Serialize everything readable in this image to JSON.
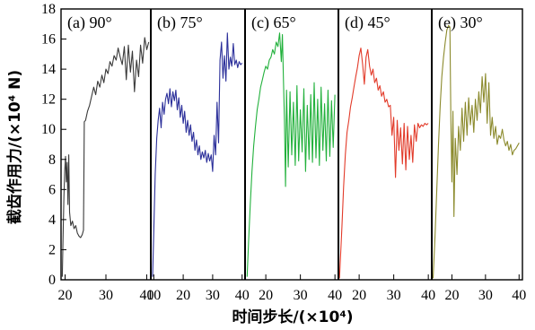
{
  "chart_data": {
    "type": "line",
    "ylabel": "截齿作用力/(×10⁴ N)",
    "xlabel": "时间步长/(×10⁴)",
    "ylim": [
      0,
      18
    ],
    "yticks": [
      "0",
      "2",
      "4",
      "6",
      "8",
      "10",
      "12",
      "14",
      "16",
      "18"
    ],
    "grid": false,
    "panels": [
      {
        "label": "(a) 90°",
        "color": "#3a3a3a",
        "xlim": [
          19,
          41
        ],
        "xticks": [
          "20",
          "30",
          "40"
        ],
        "points": [
          [
            19.3,
            0.2
          ],
          [
            19.5,
            3.0
          ],
          [
            19.7,
            5.5
          ],
          [
            19.9,
            7.2
          ],
          [
            20.1,
            8.2
          ],
          [
            20.3,
            6.5
          ],
          [
            20.5,
            7.8
          ],
          [
            20.7,
            5.0
          ],
          [
            20.9,
            8.3
          ],
          [
            21.1,
            4.5
          ],
          [
            21.4,
            3.6
          ],
          [
            21.8,
            3.9
          ],
          [
            22.2,
            3.4
          ],
          [
            22.6,
            3.6
          ],
          [
            23.0,
            3.1
          ],
          [
            23.4,
            2.9
          ],
          [
            23.8,
            2.8
          ],
          [
            24.2,
            3.0
          ],
          [
            24.5,
            3.3
          ],
          [
            24.7,
            10.5
          ],
          [
            25.0,
            10.6
          ],
          [
            25.5,
            11.2
          ],
          [
            26.0,
            11.6
          ],
          [
            26.5,
            12.2
          ],
          [
            27.0,
            12.8
          ],
          [
            27.5,
            12.3
          ],
          [
            28.0,
            13.2
          ],
          [
            28.5,
            12.8
          ],
          [
            29.0,
            13.6
          ],
          [
            29.5,
            13.1
          ],
          [
            30.0,
            14.0
          ],
          [
            30.5,
            13.7
          ],
          [
            31.0,
            14.5
          ],
          [
            31.5,
            14.2
          ],
          [
            32.0,
            14.9
          ],
          [
            32.5,
            14.6
          ],
          [
            33.0,
            15.4
          ],
          [
            33.5,
            14.8
          ],
          [
            34.0,
            14.3
          ],
          [
            34.5,
            15.5
          ],
          [
            35.0,
            13.3
          ],
          [
            35.5,
            15.6
          ],
          [
            36.0,
            13.8
          ],
          [
            36.5,
            15.2
          ],
          [
            37.0,
            12.5
          ],
          [
            37.5,
            14.6
          ],
          [
            38.0,
            13.5
          ],
          [
            38.5,
            15.6
          ],
          [
            39.0,
            14.4
          ],
          [
            39.5,
            16.1
          ],
          [
            40.0,
            15.3
          ],
          [
            40.5,
            15.8
          ]
        ]
      },
      {
        "label": "(b) 75°",
        "color": "#2b2f9a",
        "xlim": [
          9,
          41
        ],
        "xticks": [
          "10",
          "20",
          "30",
          "40"
        ],
        "points": [
          [
            9.6,
            0.2
          ],
          [
            10.0,
            3.2
          ],
          [
            10.5,
            7.0
          ],
          [
            11.0,
            9.4
          ],
          [
            11.5,
            10.6
          ],
          [
            12.0,
            11.4
          ],
          [
            12.5,
            10.1
          ],
          [
            13.0,
            11.8
          ],
          [
            13.5,
            11.0
          ],
          [
            14.0,
            12.0
          ],
          [
            14.5,
            12.4
          ],
          [
            15.0,
            11.7
          ],
          [
            15.5,
            12.7
          ],
          [
            16.0,
            11.5
          ],
          [
            16.5,
            12.5
          ],
          [
            17.0,
            11.9
          ],
          [
            17.5,
            12.6
          ],
          [
            18.0,
            11.3
          ],
          [
            18.5,
            12.1
          ],
          [
            19.0,
            10.8
          ],
          [
            19.5,
            11.6
          ],
          [
            20.0,
            10.4
          ],
          [
            20.5,
            11.2
          ],
          [
            21.0,
            9.8
          ],
          [
            21.5,
            10.6
          ],
          [
            22.0,
            9.6
          ],
          [
            22.5,
            10.3
          ],
          [
            23.0,
            9.2
          ],
          [
            23.5,
            9.8
          ],
          [
            24.0,
            8.6
          ],
          [
            24.5,
            9.3
          ],
          [
            25.0,
            8.3
          ],
          [
            25.5,
            8.9
          ],
          [
            26.0,
            8.0
          ],
          [
            26.5,
            8.5
          ],
          [
            27.0,
            8.1
          ],
          [
            27.5,
            8.6
          ],
          [
            28.0,
            7.8
          ],
          [
            28.5,
            8.4
          ],
          [
            29.0,
            7.9
          ],
          [
            29.5,
            8.3
          ],
          [
            30.0,
            7.2
          ],
          [
            30.5,
            9.6
          ],
          [
            31.0,
            8.3
          ],
          [
            31.5,
            11.8
          ],
          [
            32.0,
            9.1
          ],
          [
            32.5,
            14.6
          ],
          [
            33.0,
            15.8
          ],
          [
            33.5,
            13.4
          ],
          [
            34.0,
            14.9
          ],
          [
            34.5,
            13.2
          ],
          [
            35.0,
            16.4
          ],
          [
            35.5,
            14.0
          ],
          [
            36.0,
            14.8
          ],
          [
            36.5,
            14.2
          ],
          [
            37.0,
            15.7
          ],
          [
            37.5,
            14.3
          ],
          [
            38.0,
            14.6
          ],
          [
            38.5,
            14.1
          ],
          [
            39.0,
            14.5
          ],
          [
            39.5,
            14.3
          ],
          [
            40.0,
            14.4
          ]
        ]
      },
      {
        "label": "(c) 65°",
        "color": "#22b13c",
        "xlim": [
          14,
          41
        ],
        "xticks": [
          "20",
          "30",
          "40"
        ],
        "points": [
          [
            14.6,
            0.2
          ],
          [
            15.0,
            2.5
          ],
          [
            15.5,
            5.0
          ],
          [
            16.0,
            7.2
          ],
          [
            16.5,
            8.9
          ],
          [
            17.0,
            10.2
          ],
          [
            17.5,
            11.3
          ],
          [
            18.0,
            12.0
          ],
          [
            18.5,
            12.8
          ],
          [
            19.0,
            13.3
          ],
          [
            19.5,
            13.8
          ],
          [
            20.0,
            14.2
          ],
          [
            20.5,
            14.0
          ],
          [
            21.0,
            14.6
          ],
          [
            21.5,
            14.8
          ],
          [
            22.0,
            15.3
          ],
          [
            22.5,
            15.0
          ],
          [
            23.0,
            15.8
          ],
          [
            23.5,
            15.5
          ],
          [
            24.0,
            16.4
          ],
          [
            24.5,
            14.5
          ],
          [
            24.8,
            16.3
          ],
          [
            25.1,
            13.2
          ],
          [
            25.4,
            10.6
          ],
          [
            25.7,
            6.2
          ],
          [
            26.0,
            12.6
          ],
          [
            26.5,
            7.5
          ],
          [
            27.0,
            12.5
          ],
          [
            27.5,
            8.3
          ],
          [
            28.0,
            11.8
          ],
          [
            28.5,
            7.6
          ],
          [
            29.0,
            12.9
          ],
          [
            29.5,
            7.9
          ],
          [
            30.0,
            11.3
          ],
          [
            30.5,
            8.5
          ],
          [
            31.0,
            12.7
          ],
          [
            31.5,
            7.2
          ],
          [
            32.0,
            11.6
          ],
          [
            32.5,
            8.0
          ],
          [
            33.0,
            12.3
          ],
          [
            33.5,
            7.8
          ],
          [
            34.0,
            13.1
          ],
          [
            34.5,
            8.1
          ],
          [
            35.0,
            12.0
          ],
          [
            35.5,
            7.6
          ],
          [
            36.0,
            12.8
          ],
          [
            36.5,
            8.6
          ],
          [
            37.0,
            11.7
          ],
          [
            37.5,
            7.9
          ],
          [
            38.0,
            12.6
          ],
          [
            38.5,
            8.2
          ],
          [
            39.0,
            11.9
          ],
          [
            39.5,
            8.8
          ],
          [
            40.0,
            12.3
          ]
        ]
      },
      {
        "label": "(d) 45°",
        "color": "#e23b2a",
        "xlim": [
          14,
          41
        ],
        "xticks": [
          "20",
          "30",
          "40"
        ],
        "points": [
          [
            14.3,
            0.1
          ],
          [
            15.0,
            3.5
          ],
          [
            15.5,
            6.2
          ],
          [
            16.0,
            8.3
          ],
          [
            16.5,
            9.8
          ],
          [
            17.0,
            10.6
          ],
          [
            17.5,
            11.5
          ],
          [
            18.0,
            12.1
          ],
          [
            18.5,
            12.8
          ],
          [
            19.0,
            13.5
          ],
          [
            19.5,
            14.1
          ],
          [
            20.0,
            14.9
          ],
          [
            20.5,
            15.4
          ],
          [
            21.0,
            14.3
          ],
          [
            21.5,
            13.0
          ],
          [
            22.0,
            14.8
          ],
          [
            22.5,
            15.3
          ],
          [
            23.0,
            14.2
          ],
          [
            23.5,
            13.6
          ],
          [
            24.0,
            14.0
          ],
          [
            24.5,
            13.1
          ],
          [
            25.0,
            13.4
          ],
          [
            25.5,
            12.6
          ],
          [
            26.0,
            12.9
          ],
          [
            26.5,
            12.2
          ],
          [
            27.0,
            12.5
          ],
          [
            27.5,
            11.8
          ],
          [
            28.0,
            12.0
          ],
          [
            28.5,
            11.5
          ],
          [
            29.0,
            11.6
          ],
          [
            29.5,
            9.6
          ],
          [
            30.0,
            10.8
          ],
          [
            30.5,
            6.8
          ],
          [
            31.0,
            10.6
          ],
          [
            31.5,
            8.6
          ],
          [
            32.0,
            10.1
          ],
          [
            32.5,
            7.7
          ],
          [
            33.0,
            10.4
          ],
          [
            33.5,
            7.3
          ],
          [
            34.0,
            10.2
          ],
          [
            34.5,
            8.0
          ],
          [
            35.0,
            9.6
          ],
          [
            35.5,
            7.8
          ],
          [
            36.0,
            10.3
          ],
          [
            36.5,
            9.2
          ],
          [
            37.0,
            10.4
          ],
          [
            37.5,
            10.1
          ],
          [
            38.0,
            10.3
          ],
          [
            38.5,
            10.2
          ],
          [
            39.0,
            10.4
          ],
          [
            39.5,
            10.3
          ],
          [
            40.0,
            10.4
          ]
        ]
      },
      {
        "label": "(e) 30°",
        "color": "#8b8a2c",
        "xlim": [
          14,
          41
        ],
        "xticks": [
          "20",
          "30",
          "40"
        ],
        "points": [
          [
            14.4,
            0.1
          ],
          [
            15.0,
            3.0
          ],
          [
            15.5,
            6.0
          ],
          [
            16.0,
            9.0
          ],
          [
            16.5,
            11.6
          ],
          [
            17.0,
            13.5
          ],
          [
            17.5,
            14.8
          ],
          [
            18.0,
            15.8
          ],
          [
            18.5,
            16.6
          ],
          [
            19.0,
            16.9
          ],
          [
            19.4,
            16.8
          ],
          [
            19.7,
            10.5
          ],
          [
            20.0,
            6.5
          ],
          [
            20.3,
            11.2
          ],
          [
            20.6,
            4.2
          ],
          [
            21.0,
            9.4
          ],
          [
            21.5,
            7.0
          ],
          [
            22.0,
            10.2
          ],
          [
            22.5,
            8.6
          ],
          [
            23.0,
            11.4
          ],
          [
            23.5,
            9.2
          ],
          [
            24.0,
            11.8
          ],
          [
            24.5,
            9.6
          ],
          [
            25.0,
            12.1
          ],
          [
            25.5,
            10.3
          ],
          [
            26.0,
            11.6
          ],
          [
            26.5,
            9.8
          ],
          [
            27.0,
            12.0
          ],
          [
            27.5,
            10.6
          ],
          [
            28.0,
            12.5
          ],
          [
            28.5,
            11.1
          ],
          [
            29.0,
            13.5
          ],
          [
            29.5,
            11.8
          ],
          [
            30.0,
            13.7
          ],
          [
            30.5,
            10.4
          ],
          [
            31.0,
            13.1
          ],
          [
            31.5,
            9.6
          ],
          [
            32.0,
            10.8
          ],
          [
            32.5,
            9.4
          ],
          [
            33.0,
            10.2
          ],
          [
            33.5,
            9.0
          ],
          [
            34.0,
            9.6
          ],
          [
            34.5,
            9.4
          ],
          [
            35.0,
            10.0
          ],
          [
            35.5,
            9.3
          ],
          [
            36.0,
            8.9
          ],
          [
            36.5,
            9.2
          ],
          [
            37.0,
            8.6
          ],
          [
            37.5,
            9.0
          ],
          [
            38.0,
            8.3
          ],
          [
            38.5,
            8.6
          ],
          [
            39.0,
            8.7
          ],
          [
            39.5,
            8.9
          ],
          [
            40.0,
            9.1
          ]
        ]
      }
    ]
  }
}
